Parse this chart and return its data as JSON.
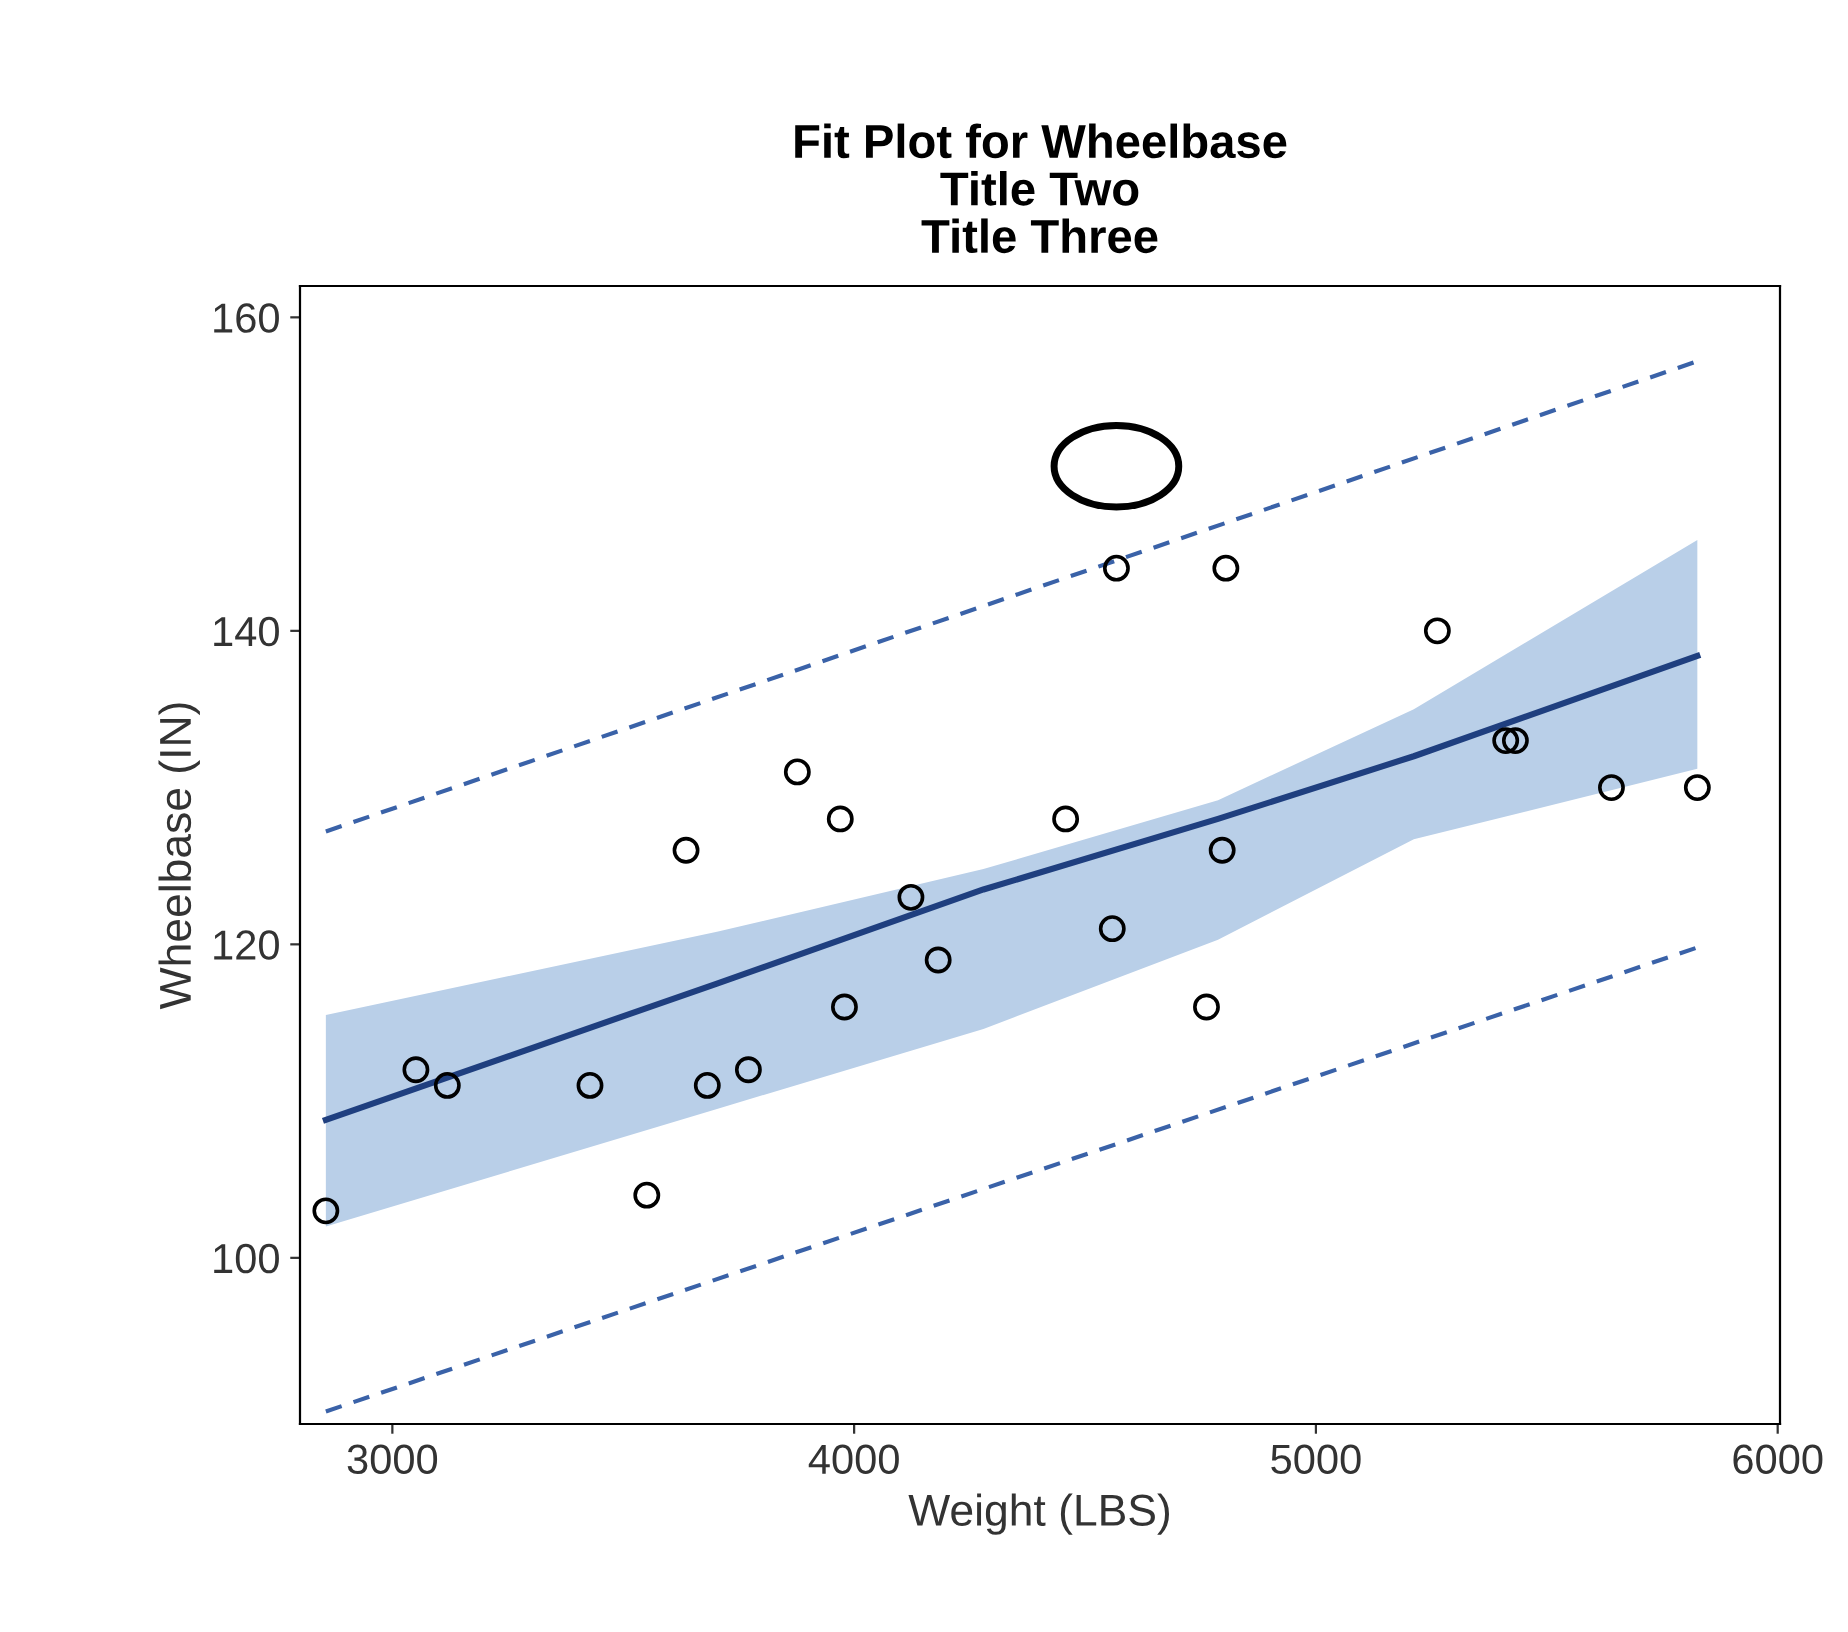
{
  "chart_data": {
    "type": "scatter",
    "title": "Fit Plot for Wheelbase\nTitle Two\nTitle Three",
    "xlabel": "Weight (LBS)",
    "ylabel": "Wheelbase (IN)",
    "xlim": [
      2800,
      6005
    ],
    "ylim": [
      89.4,
      162
    ],
    "xticks": [
      3000,
      4000,
      5000,
      6000
    ],
    "yticks": [
      100,
      120,
      140,
      160
    ],
    "grid": false,
    "legend": false,
    "marker": "circle",
    "series": [
      {
        "type": "line",
        "color": "#1f3f7f",
        "line_style": "solid",
        "marker": "none",
        "x": [
          2856,
          3703,
          4280,
          4788,
          5212,
          5826
        ],
        "values": [
          108.8,
          117.5,
          123.5,
          128,
          132,
          138.4
        ],
        "lower": [
          102,
          109.5,
          114.6,
          120.3,
          126.7,
          131.2
        ],
        "upper": [
          115.5,
          120.8,
          124.8,
          129.2,
          135,
          145.8
        ]
      },
      {
        "type": "line",
        "color": "#3a62a8",
        "line_style": "dashed",
        "marker": "none",
        "x": [
          2856,
          5826
        ],
        "values": [
          127.2,
          157.2
        ]
      },
      {
        "type": "line",
        "color": "#3a62a8",
        "line_style": "dashed",
        "marker": "none",
        "x": [
          2856,
          5826
        ],
        "values": [
          90.2,
          119.8
        ]
      },
      {
        "color": "#000000",
        "x": [
          2856,
          3051,
          3119,
          3428,
          3551,
          3636,
          3682,
          3771,
          3877,
          3970,
          3979,
          4123,
          4182,
          4458,
          4559,
          4568,
          4763,
          4797,
          4805,
          5263,
          5411,
          5432,
          5640,
          5826
        ],
        "values": [
          103,
          112,
          111,
          111,
          104,
          126,
          111,
          112,
          131,
          128,
          116,
          123,
          119,
          128,
          121,
          144,
          116,
          126,
          144,
          140,
          133,
          133,
          130,
          130
        ]
      }
    ]
  }
}
